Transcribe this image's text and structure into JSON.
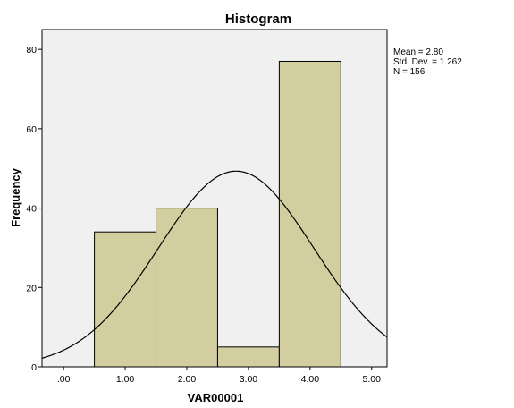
{
  "chart_data": {
    "type": "bar",
    "subtype": "histogram",
    "title": "Histogram",
    "xlabel": "VAR00001",
    "ylabel": "Frequency",
    "bins": [
      {
        "x0": 0.5,
        "x1": 1.5,
        "count": 34
      },
      {
        "x0": 1.5,
        "x1": 2.5,
        "count": 40
      },
      {
        "x0": 2.5,
        "x1": 3.5,
        "count": 5
      },
      {
        "x0": 3.5,
        "x1": 4.5,
        "count": 77
      }
    ],
    "normal_curve": {
      "mean": 2.8,
      "sd": 1.262,
      "n": 156,
      "bin_width": 1
    },
    "xlim": [
      -0.35,
      5.25
    ],
    "ylim": [
      0,
      85
    ],
    "x_ticks": [
      0,
      1,
      2,
      3,
      4,
      5
    ],
    "x_tick_labels": [
      ".00",
      "1.00",
      "2.00",
      "3.00",
      "4.00",
      "5.00"
    ],
    "y_ticks": [
      0,
      20,
      40,
      60,
      80
    ],
    "y_tick_labels": [
      "0",
      "20",
      "40",
      "60",
      "80"
    ],
    "stats_text": [
      "Mean = 2.80",
      "Std. Dev. = 1.262",
      "N = 156"
    ],
    "colors": {
      "bar_fill": "#d3ce9f",
      "plot_background": "#f0f0f0",
      "edge": "#000000"
    },
    "grid": false
  }
}
